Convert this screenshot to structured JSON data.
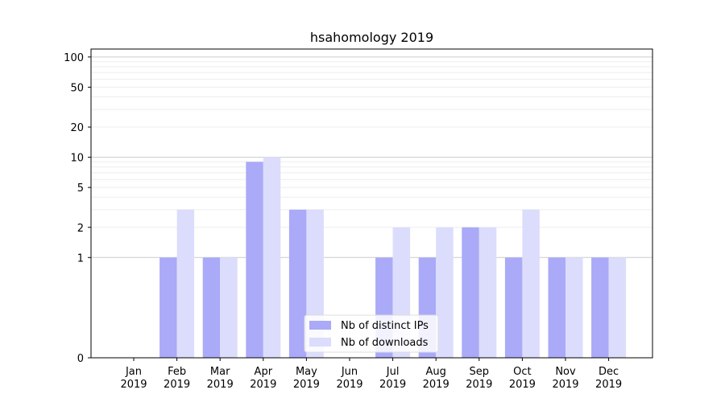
{
  "chart_data": {
    "type": "bar",
    "title": "hsahomology 2019",
    "xlabel": "",
    "ylabel": "",
    "y_scale": "symlog",
    "ylim": [
      0,
      120
    ],
    "y_ticks": [
      0,
      1,
      2,
      5,
      10,
      20,
      50,
      100
    ],
    "grid": "horizontal",
    "legend_position": "bottom-center",
    "categories": [
      [
        "Jan",
        "2019"
      ],
      [
        "Feb",
        "2019"
      ],
      [
        "Mar",
        "2019"
      ],
      [
        "Apr",
        "2019"
      ],
      [
        "May",
        "2019"
      ],
      [
        "Jun",
        "2019"
      ],
      [
        "Jul",
        "2019"
      ],
      [
        "Aug",
        "2019"
      ],
      [
        "Sep",
        "2019"
      ],
      [
        "Oct",
        "2019"
      ],
      [
        "Nov",
        "2019"
      ],
      [
        "Dec",
        "2019"
      ]
    ],
    "series": [
      {
        "name": "Nb of distinct IPs",
        "color": "#aaaaf8",
        "values": [
          0,
          1,
          1,
          9,
          3,
          0,
          1,
          1,
          2,
          1,
          1,
          1
        ]
      },
      {
        "name": "Nb of downloads",
        "color": "#dcdcfd",
        "values": [
          0,
          3,
          1,
          10,
          3,
          0,
          2,
          2,
          2,
          3,
          1,
          1
        ]
      }
    ]
  }
}
